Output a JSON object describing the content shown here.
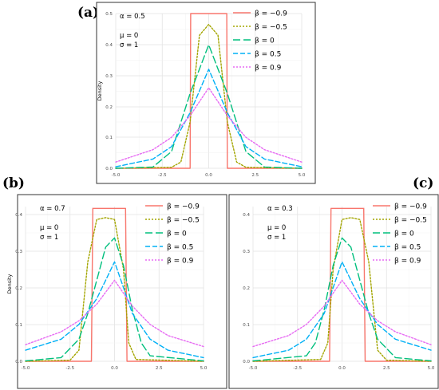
{
  "chart_data": [
    {
      "type": "line",
      "panel_label": "(a)",
      "ylabel": "Density",
      "xticks": [
        "-5.0",
        "-2.5",
        "0.0",
        "2.5",
        "5.0"
      ],
      "yticks": [
        "0.0",
        "0.1",
        "0.2",
        "0.3",
        "0.4",
        "0.5"
      ],
      "xlim": [
        -5,
        5
      ],
      "ylim": [
        0,
        0.5
      ],
      "grid": true,
      "legend_position": "top-right",
      "annotations": [
        "α = 0.5",
        "μ = 0",
        "σ = 1"
      ],
      "series": [
        {
          "name": "β = −0.9",
          "beta": -0.9,
          "color": "#F8766D",
          "dash": "solid",
          "x": [
            -5,
            -1.0,
            -0.97,
            0,
            0.97,
            1.0,
            5
          ],
          "y": [
            0,
            0,
            0.5,
            0.5,
            0.5,
            0,
            0
          ]
        },
        {
          "name": "β = −0.5",
          "beta": -0.5,
          "color": "#A3A500",
          "dash": "dotted",
          "x": [
            -5,
            -2,
            -1.5,
            -1,
            -0.5,
            0,
            0.5,
            1,
            1.5,
            2,
            5
          ],
          "y": [
            0,
            0.003,
            0.02,
            0.15,
            0.43,
            0.465,
            0.43,
            0.15,
            0.02,
            0.003,
            0
          ]
        },
        {
          "name": "β = 0",
          "beta": 0,
          "color": "#00BF7D",
          "dash": "longdash",
          "x": [
            -5,
            -3,
            -2,
            -1,
            0,
            1,
            2,
            3,
            5
          ],
          "y": [
            0.0,
            0.004,
            0.054,
            0.242,
            0.399,
            0.242,
            0.054,
            0.004,
            0.0
          ]
        },
        {
          "name": "β = 0.5",
          "beta": 0.5,
          "color": "#00B0F6",
          "dash": "dashed",
          "x": [
            -5,
            -3,
            -2,
            -1,
            0,
            1,
            2,
            3,
            5
          ],
          "y": [
            0.005,
            0.03,
            0.07,
            0.18,
            0.32,
            0.18,
            0.07,
            0.03,
            0.005
          ]
        },
        {
          "name": "β = 0.9",
          "beta": 0.9,
          "color": "#E76BF3",
          "dash": "dotted",
          "x": [
            -5,
            -3,
            -2,
            -1,
            0,
            1,
            2,
            3,
            5
          ],
          "y": [
            0.02,
            0.06,
            0.1,
            0.17,
            0.26,
            0.17,
            0.1,
            0.06,
            0.02
          ]
        }
      ]
    },
    {
      "type": "line",
      "panel_label": "(b)",
      "ylabel": "Density",
      "xticks": [
        "-5.0",
        "-2.5",
        "0.0",
        "2.5",
        "5.0"
      ],
      "yticks": [
        "0.0",
        "0.1",
        "0.2",
        "0.3",
        "0.4"
      ],
      "xlim": [
        -5,
        5
      ],
      "ylim": [
        0,
        0.42
      ],
      "grid": true,
      "legend_position": "top-right",
      "annotations": [
        "α = 0.7",
        "μ = 0",
        "σ = 1"
      ],
      "series": [
        {
          "name": "β = −0.9",
          "beta": -0.9,
          "color": "#F8766D",
          "dash": "solid",
          "x": [
            -5,
            -1.3,
            -1.22,
            0,
            0.62,
            0.7,
            5
          ],
          "y": [
            0,
            0,
            0.415,
            0.415,
            0.415,
            0,
            0
          ]
        },
        {
          "name": "β = −0.5",
          "beta": -0.5,
          "color": "#A3A500",
          "dash": "dotted",
          "x": [
            -5,
            -2.5,
            -2,
            -1.5,
            -1,
            -0.5,
            0,
            0.5,
            0.8,
            1.2,
            5
          ],
          "y": [
            0,
            0.003,
            0.03,
            0.27,
            0.385,
            0.39,
            0.385,
            0.25,
            0.05,
            0.005,
            0
          ]
        },
        {
          "name": "β = 0",
          "beta": 0,
          "color": "#00BF7D",
          "dash": "longdash",
          "x": [
            -5,
            -3,
            -2,
            -1.5,
            -1,
            -0.5,
            0,
            0.5,
            1,
            1.5,
            2,
            5
          ],
          "y": [
            0.001,
            0.01,
            0.06,
            0.13,
            0.22,
            0.31,
            0.335,
            0.26,
            0.14,
            0.05,
            0.015,
            0.001
          ]
        },
        {
          "name": "β = 0.5",
          "beta": 0.5,
          "color": "#00B0F6",
          "dash": "dashed",
          "x": [
            -5,
            -3,
            -2,
            -1,
            -0.5,
            0,
            0.5,
            1,
            2,
            3,
            5
          ],
          "y": [
            0.03,
            0.06,
            0.1,
            0.17,
            0.22,
            0.27,
            0.2,
            0.13,
            0.06,
            0.03,
            0.01
          ]
        },
        {
          "name": "β = 0.9",
          "beta": 0.9,
          "color": "#E76BF3",
          "dash": "dotted",
          "x": [
            -5,
            -3,
            -2,
            -1,
            0,
            1,
            2,
            3,
            5
          ],
          "y": [
            0.045,
            0.08,
            0.11,
            0.155,
            0.22,
            0.15,
            0.1,
            0.07,
            0.04
          ]
        }
      ]
    },
    {
      "type": "line",
      "panel_label": "(c)",
      "ylabel": "",
      "xticks": [
        "-5.0",
        "-2.5",
        "0.0",
        "2.5",
        "5.0"
      ],
      "yticks": [
        "0.0",
        "0.1",
        "0.2",
        "0.3",
        "0.4"
      ],
      "xlim": [
        -5,
        5
      ],
      "ylim": [
        0,
        0.42
      ],
      "grid": true,
      "legend_position": "top-right",
      "annotations": [
        "α = 0.3",
        "μ = 0",
        "σ = 1"
      ],
      "series": [
        {
          "name": "β = −0.9",
          "beta": -0.9,
          "color": "#F8766D",
          "dash": "solid",
          "x": [
            -5,
            -0.7,
            -0.62,
            0,
            1.22,
            1.3,
            5
          ],
          "y": [
            0,
            0,
            0.415,
            0.415,
            0.415,
            0,
            0
          ]
        },
        {
          "name": "β = −0.5",
          "beta": -0.5,
          "color": "#A3A500",
          "dash": "dotted",
          "x": [
            -5,
            -1.2,
            -0.8,
            -0.5,
            0,
            0.5,
            1,
            1.5,
            2,
            2.5,
            5
          ],
          "y": [
            0,
            0.005,
            0.05,
            0.25,
            0.385,
            0.39,
            0.385,
            0.27,
            0.03,
            0.003,
            0
          ]
        },
        {
          "name": "β = 0",
          "beta": 0,
          "color": "#00BF7D",
          "dash": "longdash",
          "x": [
            -5,
            -2,
            -1.5,
            -1,
            -0.5,
            0,
            0.5,
            1,
            1.5,
            2,
            3,
            5
          ],
          "y": [
            0.001,
            0.015,
            0.05,
            0.14,
            0.26,
            0.335,
            0.31,
            0.22,
            0.13,
            0.06,
            0.01,
            0.001
          ]
        },
        {
          "name": "β = 0.5",
          "beta": 0.5,
          "color": "#00B0F6",
          "dash": "dashed",
          "x": [
            -5,
            -3,
            -2,
            -1,
            -0.5,
            0,
            0.5,
            1,
            2,
            3,
            5
          ],
          "y": [
            0.01,
            0.03,
            0.06,
            0.13,
            0.2,
            0.27,
            0.22,
            0.17,
            0.1,
            0.06,
            0.03
          ]
        },
        {
          "name": "β = 0.9",
          "beta": 0.9,
          "color": "#E76BF3",
          "dash": "dotted",
          "x": [
            -5,
            -3,
            -2,
            -1,
            0,
            1,
            2,
            3,
            5
          ],
          "y": [
            0.04,
            0.07,
            0.1,
            0.15,
            0.22,
            0.155,
            0.11,
            0.08,
            0.045
          ]
        }
      ]
    }
  ]
}
